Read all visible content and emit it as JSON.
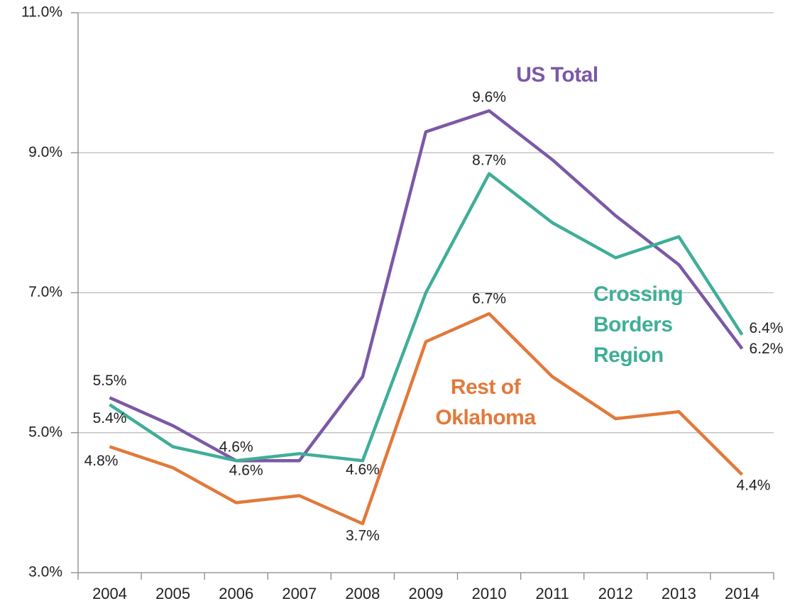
{
  "chart_data": {
    "type": "line",
    "categories": [
      "2004",
      "2005",
      "2006",
      "2007",
      "2008",
      "2009",
      "2010",
      "2011",
      "2012",
      "2013",
      "2014"
    ],
    "series": [
      {
        "name": "US Total",
        "color": "#7b59a6",
        "values": [
          5.5,
          5.1,
          4.6,
          4.6,
          5.8,
          9.3,
          9.6,
          8.9,
          8.1,
          7.4,
          6.2
        ],
        "value_labels": [
          "5.5%",
          null,
          "4.6%",
          null,
          null,
          null,
          "9.6%",
          null,
          null,
          null,
          "6.2%"
        ]
      },
      {
        "name": "Crossing Borders Region",
        "color": "#3fae98",
        "values": [
          5.4,
          4.8,
          4.6,
          4.7,
          4.6,
          7.0,
          8.7,
          8.0,
          7.5,
          7.8,
          6.4
        ],
        "value_labels": [
          "5.4%",
          null,
          "4.6%",
          null,
          "4.6%",
          null,
          "8.7%",
          null,
          null,
          null,
          "6.4%"
        ]
      },
      {
        "name": "Rest of Oklahoma",
        "color": "#e2793a",
        "values": [
          4.8,
          4.5,
          4.0,
          4.1,
          3.7,
          6.3,
          6.7,
          5.8,
          5.2,
          5.3,
          4.4
        ],
        "value_labels": [
          "4.8%",
          null,
          null,
          null,
          "3.7%",
          null,
          "6.7%",
          null,
          null,
          null,
          "4.4%"
        ]
      }
    ],
    "ylim": [
      3,
      11
    ],
    "yticks": [
      {
        "value": 3,
        "label": "3.0%"
      },
      {
        "value": 5,
        "label": "5.0%"
      },
      {
        "value": 7,
        "label": "7.0%"
      },
      {
        "value": 9,
        "label": "9.0%"
      },
      {
        "value": 11,
        "label": "11.0%"
      }
    ],
    "grid": true
  }
}
